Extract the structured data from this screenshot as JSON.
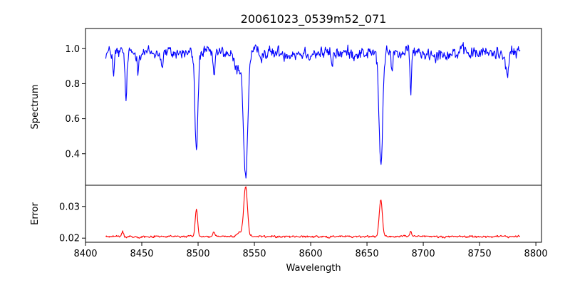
{
  "chart_data": {
    "type": "line",
    "title": "20061023_0539m52_071",
    "xlabel": "Wavelength",
    "x_range": [
      8418,
      8786
    ],
    "xlim": [
      8400,
      8805
    ],
    "xticks": [
      8400,
      8450,
      8500,
      8550,
      8600,
      8650,
      8700,
      8750,
      8800
    ],
    "grid": false,
    "panels": [
      {
        "name": "spectrum",
        "ylabel": "Spectrum",
        "ylim": [
          0.22,
          1.115
        ],
        "yticks": [
          0.4,
          0.6,
          0.8,
          1.0
        ],
        "ytick_labels": [
          "0.4",
          "0.6",
          "0.8",
          "1.0"
        ],
        "color": "#0000ff",
        "continuum": 0.975,
        "noise": 0.032,
        "features": [
          {
            "center": 8425,
            "depth": 0.15,
            "width": 0.6
          },
          {
            "center": 8436,
            "depth": 0.28,
            "width": 0.8
          },
          {
            "center": 8446.5,
            "depth": 0.08,
            "width": 0.6
          },
          {
            "center": 8468,
            "depth": 0.09,
            "width": 0.7
          },
          {
            "center": 8498.5,
            "depth": 0.56,
            "width": 1.3
          },
          {
            "center": 8514,
            "depth": 0.16,
            "width": 0.7
          },
          {
            "center": 8542.2,
            "depth": 0.72,
            "width": 1.8
          },
          {
            "center": 8535,
            "depth": 0.1,
            "width": 3.0
          },
          {
            "center": 8619,
            "depth": 0.08,
            "width": 0.7
          },
          {
            "center": 8662.3,
            "depth": 0.64,
            "width": 1.6
          },
          {
            "center": 8672,
            "depth": 0.09,
            "width": 0.7
          },
          {
            "center": 8688.8,
            "depth": 0.21,
            "width": 0.7
          },
          {
            "center": 8774.5,
            "depth": 0.15,
            "width": 1.0
          }
        ]
      },
      {
        "name": "error",
        "ylabel": "Error",
        "ylim": [
          0.0187,
          0.0367
        ],
        "yticks": [
          0.02,
          0.03
        ],
        "ytick_labels": [
          "0.02",
          "0.03"
        ],
        "color": "#ff0000",
        "continuum": 0.0205,
        "noise": 0.0003,
        "features": [
          {
            "center": 8433,
            "depth": -0.0015,
            "width": 0.8
          },
          {
            "center": 8498.5,
            "depth": -0.0084,
            "width": 1.1
          },
          {
            "center": 8514,
            "depth": -0.0013,
            "width": 0.7
          },
          {
            "center": 8542.2,
            "depth": -0.0158,
            "width": 1.6
          },
          {
            "center": 8537,
            "depth": -0.0012,
            "width": 2.5
          },
          {
            "center": 8662.3,
            "depth": -0.0115,
            "width": 1.4
          },
          {
            "center": 8688.8,
            "depth": -0.0017,
            "width": 0.7
          }
        ]
      }
    ]
  }
}
